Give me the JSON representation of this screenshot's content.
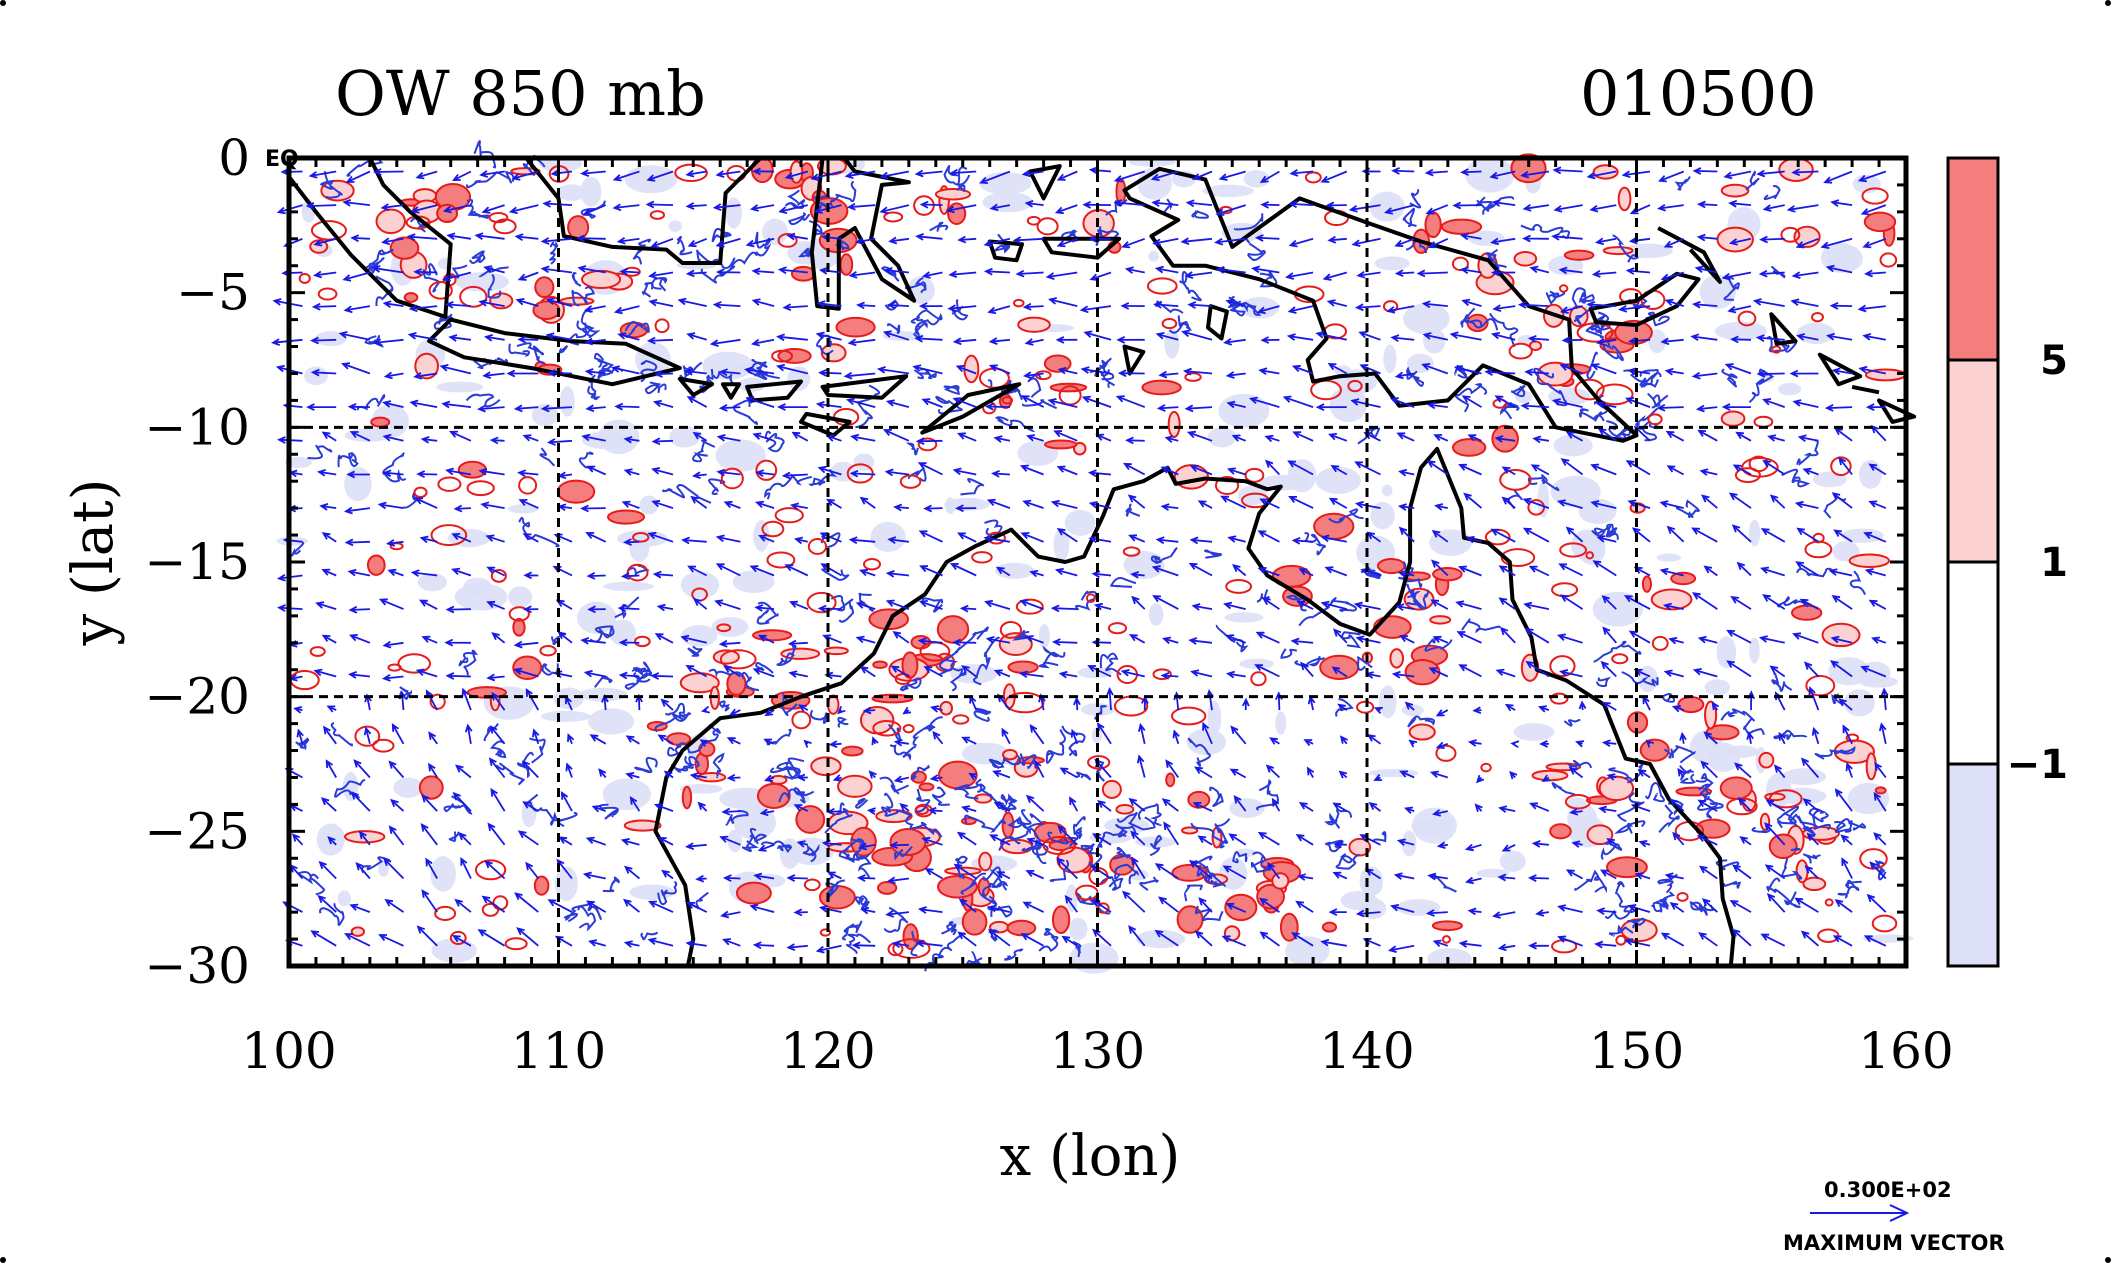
{
  "chart_data": {
    "type": "map",
    "title_left": "OW 850 mb",
    "title_right": "010500",
    "xlabel": "x (lon)",
    "ylabel": "y (lat)",
    "xlim": [
      100,
      160
    ],
    "ylim": [
      -30,
      0
    ],
    "x_ticks": [
      "100",
      "110",
      "120",
      "130",
      "140",
      "150",
      "160"
    ],
    "y_ticks": [
      "0",
      "−5",
      "−10",
      "−15",
      "−20",
      "−25",
      "−30"
    ],
    "corner_label": "EQ",
    "grid": "dashed every 10 degrees",
    "colorbar": {
      "levels": [
        "5",
        "1",
        "−1"
      ],
      "colors": [
        "#f47d7d",
        "#fbd1d1",
        "#ffffff",
        "#dde0f7"
      ]
    },
    "vector_legend": {
      "value": "0.300E+02",
      "label": "MAXIMUM VECTOR"
    },
    "colors": {
      "wind_vectors": "#1919e6",
      "positive_contours": "#e81b1b",
      "negative_contours": "#2a3bd8",
      "coastline": "#000000"
    }
  }
}
